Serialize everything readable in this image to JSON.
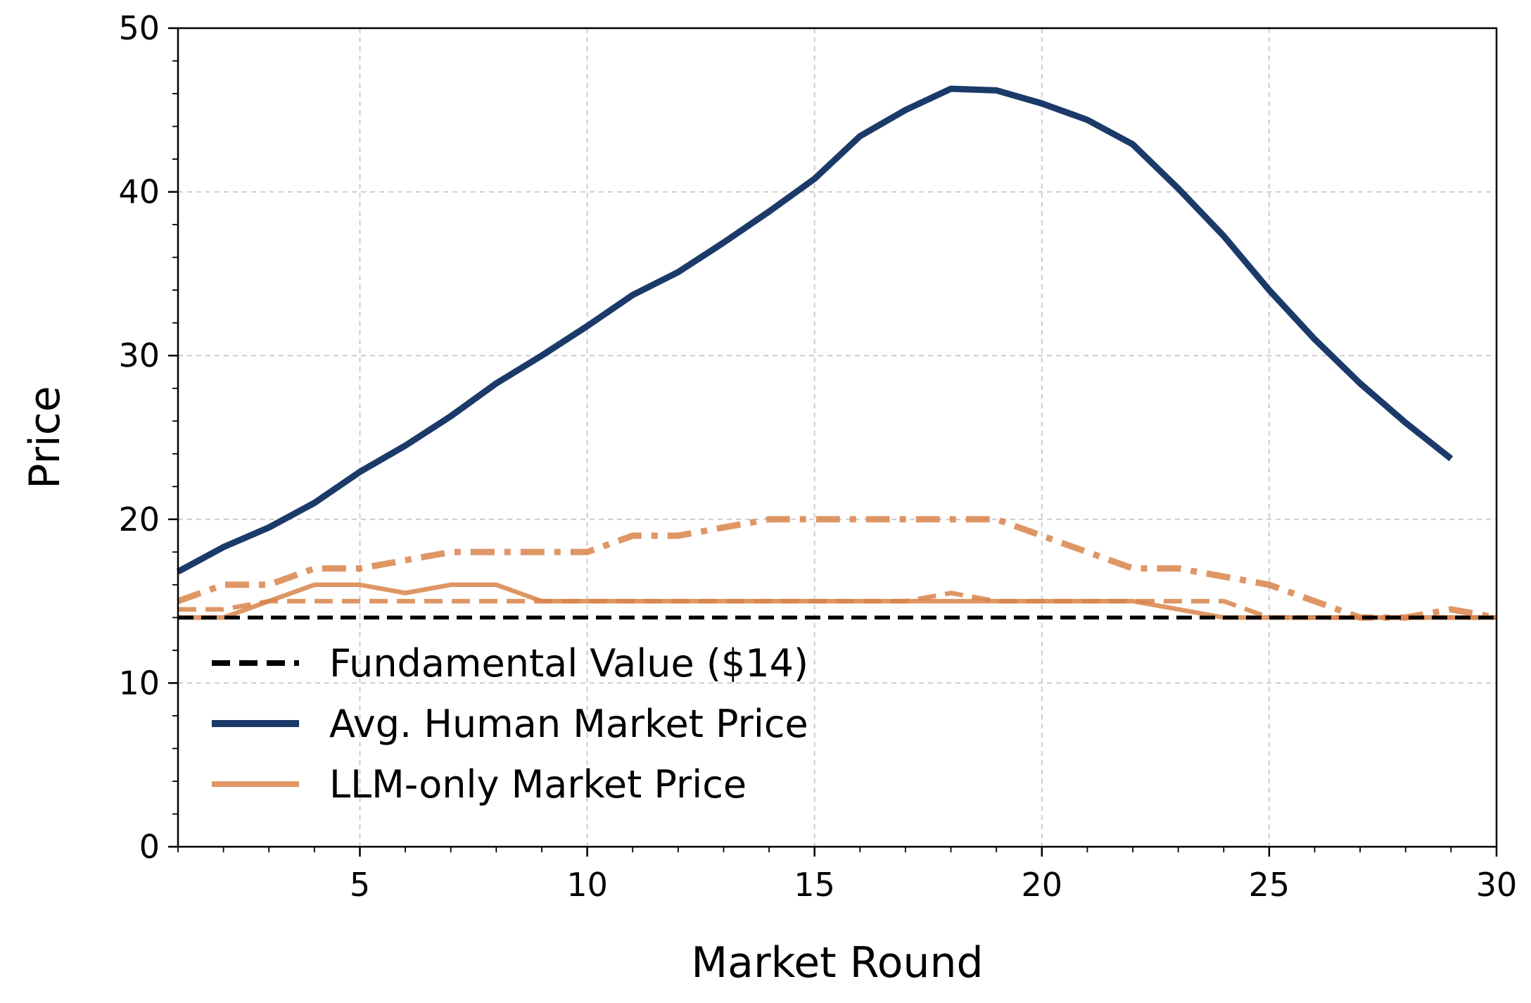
{
  "chart_data": {
    "type": "line",
    "title": "",
    "xlabel": "Market Round",
    "ylabel": "Price",
    "xlim": [
      1,
      30
    ],
    "ylim": [
      0,
      50
    ],
    "xticks": [
      5,
      10,
      15,
      20,
      25,
      30
    ],
    "yticks": [
      0,
      10,
      20,
      30,
      40,
      50
    ],
    "grid": true,
    "legend_position": "lower-left",
    "series": [
      {
        "key": "human",
        "name": "Avg. Human Market Price",
        "color": "#1b3a69",
        "style": "solid",
        "in_legend": true,
        "x": [
          1,
          2,
          3,
          4,
          5,
          6,
          7,
          8,
          9,
          10,
          11,
          12,
          13,
          14,
          15,
          16,
          17,
          18,
          19,
          20,
          21,
          22,
          23,
          24,
          25,
          26,
          27,
          28,
          29
        ],
        "y": [
          16.8,
          18.3,
          19.5,
          21.0,
          22.9,
          24.5,
          26.3,
          28.3,
          30.0,
          31.8,
          33.7,
          35.1,
          36.9,
          38.8,
          40.8,
          43.4,
          45.0,
          46.3,
          46.2,
          45.4,
          44.4,
          42.9,
          40.2,
          37.3,
          34.0,
          31.0,
          28.3,
          25.9,
          23.7
        ]
      },
      {
        "key": "llm_solid",
        "name": "LLM-only Market Price",
        "color": "#d9844a",
        "style": "solid",
        "in_legend": true,
        "x": [
          1,
          2,
          3,
          4,
          5,
          6,
          7,
          8,
          9,
          10,
          11,
          12,
          13,
          14,
          15,
          16,
          17,
          18,
          19,
          20,
          21,
          22,
          23,
          24,
          25,
          26,
          27,
          28,
          29,
          30
        ],
        "y": [
          14,
          14,
          15,
          16,
          16,
          15.5,
          16,
          16,
          15,
          15,
          15,
          15,
          15,
          15,
          15,
          15,
          15,
          15,
          15,
          15,
          15,
          15,
          14.5,
          14,
          14,
          14,
          14,
          14,
          14,
          14
        ]
      },
      {
        "key": "llm_dashed",
        "name": "",
        "color": "#d9844a",
        "style": "dashed",
        "in_legend": false,
        "x": [
          1,
          2,
          3,
          4,
          5,
          6,
          7,
          8,
          9,
          10,
          11,
          12,
          13,
          14,
          15,
          16,
          17,
          18,
          19,
          20,
          21,
          22,
          23,
          24,
          25,
          26,
          27,
          28,
          29,
          30
        ],
        "y": [
          14.5,
          14.5,
          15,
          15,
          15,
          15,
          15,
          15,
          15,
          15,
          15,
          15,
          15,
          15,
          15,
          15,
          15,
          15.5,
          15,
          15,
          15,
          15,
          15,
          15,
          14,
          14,
          14,
          14,
          14,
          14
        ]
      },
      {
        "key": "llm_dashdot",
        "name": "",
        "color": "#d9844a",
        "style": "dashdot",
        "in_legend": false,
        "x": [
          1,
          2,
          3,
          4,
          5,
          6,
          7,
          8,
          9,
          10,
          11,
          12,
          13,
          14,
          15,
          16,
          17,
          18,
          19,
          20,
          21,
          22,
          23,
          24,
          25,
          26,
          27,
          28,
          29,
          30
        ],
        "y": [
          15,
          16,
          16,
          17,
          17,
          17.5,
          18,
          18,
          18,
          18,
          19,
          19,
          19.5,
          20,
          20,
          20,
          20,
          20,
          20,
          19,
          18,
          17,
          17,
          16.5,
          16,
          15,
          14,
          14,
          14.5,
          14
        ]
      },
      {
        "key": "fundamental",
        "name": "Fundamental Value ($14)",
        "color": "#000000",
        "style": "dashed-black",
        "in_legend": true,
        "x": [
          1,
          30
        ],
        "y": [
          14,
          14
        ]
      }
    ],
    "legend_order": [
      "fundamental",
      "human",
      "llm_solid"
    ]
  }
}
